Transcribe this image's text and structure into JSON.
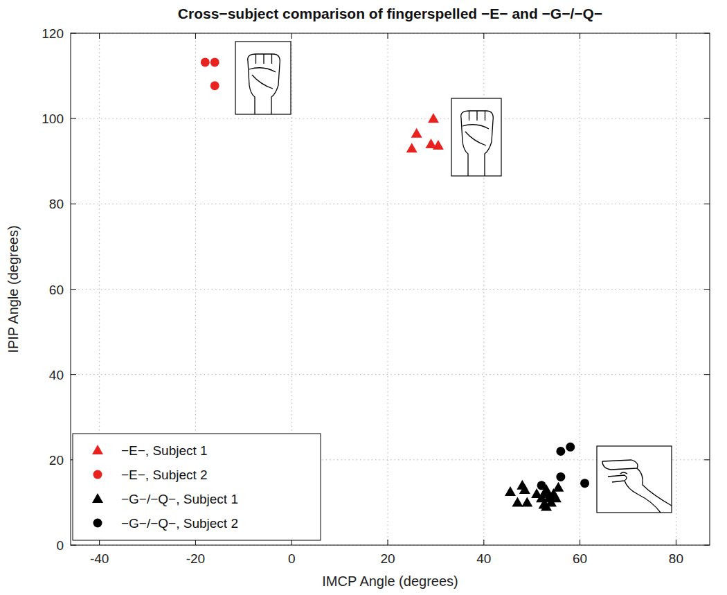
{
  "chart_data": {
    "type": "scatter",
    "title": "Cross−subject comparison of fingerspelled −E− and −G−/−Q−",
    "x_label": "IMCP Angle (degrees)",
    "y_label": "IPIP Angle (degrees)",
    "xlim": [
      -46,
      87
    ],
    "ylim": [
      0,
      120
    ],
    "xticks": [
      -40,
      -20,
      0,
      20,
      40,
      60,
      80
    ],
    "yticks": [
      0,
      20,
      40,
      60,
      80,
      100,
      120
    ],
    "grid": true,
    "legend": "lower left",
    "series": [
      {
        "name": "−E−, Subject 1",
        "color": "#e8221f",
        "marker": "triangle",
        "x": [
          26,
          29.5,
          25,
          29,
          30.5
        ],
        "values": [
          96.5,
          100,
          93,
          94,
          93.7
        ]
      },
      {
        "name": "−E−, Subject 2",
        "color": "#e8221f",
        "marker": "circle",
        "x": [
          -18,
          -16,
          -16
        ],
        "values": [
          113.2,
          113.2,
          107.7
        ]
      },
      {
        "name": "−G−/−Q−, Subject 1",
        "color": "#000000",
        "marker": "triangle",
        "x": [
          45.5,
          48,
          48.5,
          47,
          49,
          51,
          52,
          52.5,
          53,
          53.5,
          54,
          54.5,
          55,
          55.5,
          53
        ],
        "values": [
          12.5,
          14,
          13,
          10,
          10,
          12,
          11,
          9.5,
          13,
          11,
          10,
          12,
          11,
          13.5,
          9
        ]
      },
      {
        "name": "−G−/−Q−, Subject 2",
        "color": "#000000",
        "marker": "circle",
        "x": [
          52,
          53,
          54,
          56,
          56,
          58,
          61
        ],
        "values": [
          14,
          12,
          11,
          16,
          22,
          23,
          14.5
        ]
      }
    ]
  }
}
